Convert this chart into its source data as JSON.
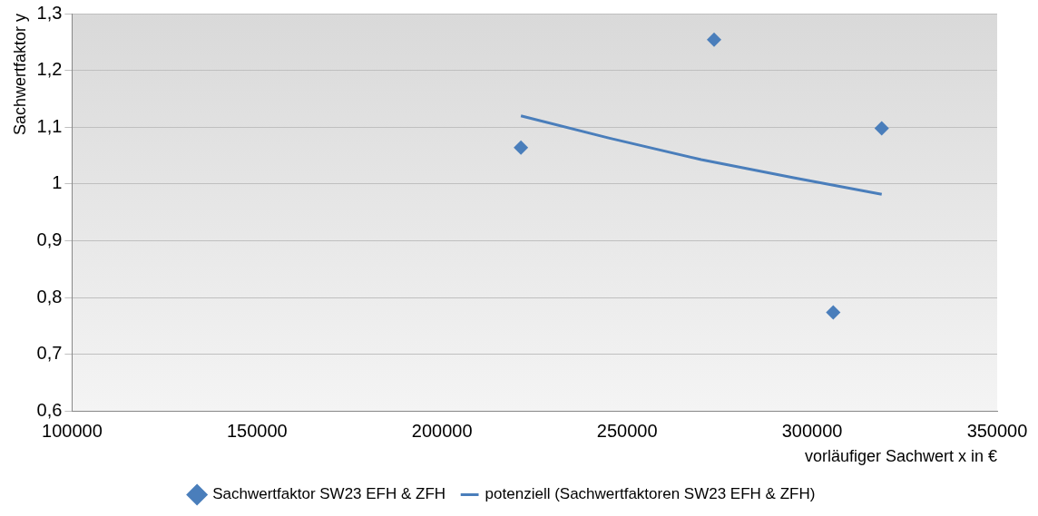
{
  "chart_data": {
    "type": "scatter",
    "xlabel": "vorläufiger Sachwert x in €",
    "ylabel": "Sachwertfaktor y",
    "xlim": [
      100000,
      350000
    ],
    "xticks": [
      100000,
      150000,
      200000,
      250000,
      300000,
      350000
    ],
    "ylim": [
      0.6,
      1.3
    ],
    "yticks": [
      {
        "value": 0.6,
        "label": "0,6"
      },
      {
        "value": 0.7,
        "label": "0,7"
      },
      {
        "value": 0.8,
        "label": "0,8"
      },
      {
        "value": 0.9,
        "label": "0,9"
      },
      {
        "value": 1,
        "label": "1"
      },
      {
        "value": 1.1,
        "label": "1,1"
      },
      {
        "value": 1.2,
        "label": "1,2"
      },
      {
        "value": 1.3,
        "label": "1,3"
      }
    ],
    "grid": "y",
    "legend": "bottom",
    "series": [
      {
        "name": "Sachwertfaktor SW23 EFH & ZFH",
        "marker": "diamond",
        "color": "#4a7ebb",
        "x": [
          221300,
          273500,
          305700,
          318800
        ],
        "values": [
          1.064,
          1.254,
          0.774,
          1.098
        ]
      },
      {
        "name": "potenziell (Sachwertfaktoren SW23 EFH & ZFH)",
        "type": "line",
        "marker": "none",
        "line_style": "solid",
        "color": "#4a7ebb",
        "x": [
          221300,
          245000,
          270000,
          295000,
          318800
        ],
        "values": [
          1.12,
          1.081,
          1.043,
          1.011,
          0.982
        ]
      }
    ]
  }
}
